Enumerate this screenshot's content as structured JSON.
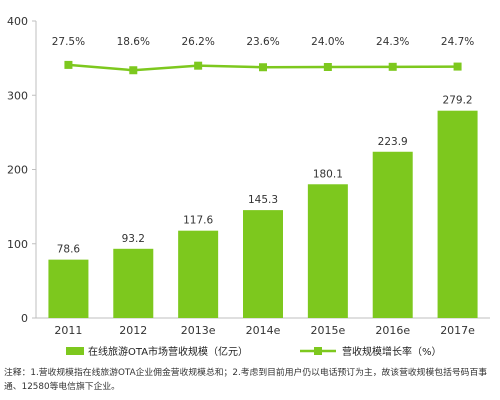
{
  "chart_data": {
    "type": "bar+line",
    "categories": [
      "2011",
      "2012",
      "2013e",
      "2014e",
      "2015e",
      "2016e",
      "2017e"
    ],
    "series": [
      {
        "name": "在线旅游OTA市场营收规模（亿元）",
        "type": "bar",
        "axis": "left",
        "values": [
          78.6,
          93.2,
          117.6,
          145.3,
          180.1,
          223.9,
          279.2
        ],
        "labels": [
          "78.6",
          "93.2",
          "117.6",
          "145.3",
          "180.1",
          "223.9",
          "279.2"
        ]
      },
      {
        "name": "营收规模增长率（%）",
        "type": "line",
        "axis": "right-hidden",
        "values": [
          27.5,
          18.6,
          26.2,
          23.6,
          24.0,
          24.3,
          24.7
        ],
        "labels": [
          "27.5%",
          "18.6%",
          "26.2%",
          "23.6%",
          "24.0%",
          "24.3%",
          "24.7%"
        ]
      }
    ],
    "y_ticks": [
      "0",
      "100",
      "200",
      "300",
      "400"
    ],
    "ylim": [
      0,
      400
    ],
    "grid": false,
    "legend_position": "bottom",
    "colors": {
      "bar": "#7dc81e",
      "line": "#7dc81e",
      "axis": "#bfbfbf"
    }
  },
  "note": "注释：1.营收规模指在线旅游OTA企业佣金营收规模总和；2.考虑到目前用户仍以电话预订为主，故该营收规模包括号码百事通、12580等电信旗下企业。"
}
